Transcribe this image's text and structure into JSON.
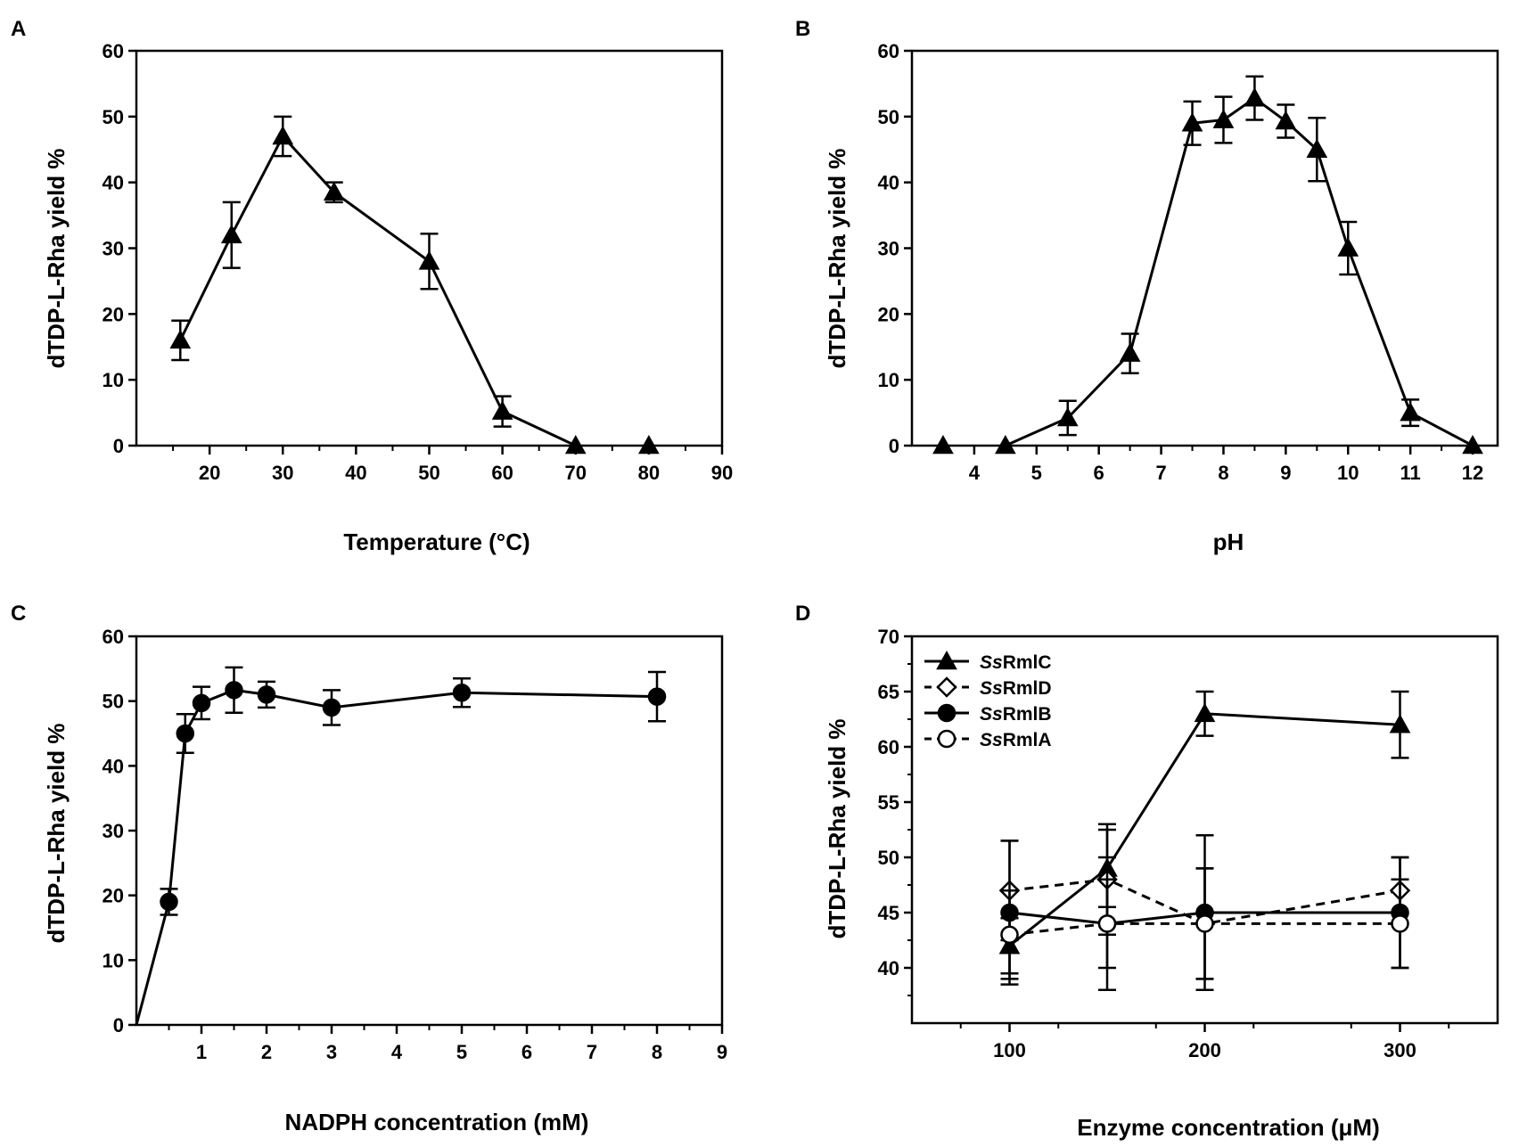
{
  "chart_data": [
    {
      "panel": "A",
      "type": "line",
      "xlabel": "Temperature (°C)",
      "ylabel": "dTDP-L-Rha yield %",
      "xlim": [
        10,
        90
      ],
      "ylim": [
        0,
        60
      ],
      "xticks": [
        20,
        30,
        40,
        50,
        60,
        70,
        80,
        90
      ],
      "yticks": [
        0,
        10,
        20,
        30,
        40,
        50,
        60
      ],
      "series": [
        {
          "name": "yield",
          "marker": "triangle",
          "filled": true,
          "dash": false,
          "x": [
            16,
            23,
            30,
            37,
            50,
            60,
            70,
            80
          ],
          "y": [
            16,
            32,
            47,
            38.5,
            28,
            5.2,
            0,
            0
          ],
          "err": [
            3,
            5,
            3,
            1.5,
            4.2,
            2.3,
            0,
            0
          ],
          "connect_until": 7
        }
      ]
    },
    {
      "panel": "B",
      "type": "line",
      "xlabel": "pH",
      "ylabel": "dTDP-L-Rha yield %",
      "xlim": [
        3,
        12.4
      ],
      "ylim": [
        0,
        60
      ],
      "xticks": [
        4,
        5,
        6,
        7,
        8,
        9,
        10,
        11,
        12
      ],
      "yticks": [
        0,
        10,
        20,
        30,
        40,
        50,
        60
      ],
      "series": [
        {
          "name": "yield",
          "marker": "triangle",
          "filled": true,
          "dash": false,
          "x": [
            3.5,
            4.5,
            5.5,
            6.5,
            7.5,
            8,
            8.5,
            9,
            9.5,
            10,
            11,
            12
          ],
          "y": [
            0,
            0,
            4.2,
            14,
            49,
            49.5,
            52.8,
            49.3,
            45,
            30,
            5,
            0
          ],
          "err": [
            0,
            0,
            2.6,
            3,
            3.3,
            3.5,
            3.3,
            2.5,
            4.8,
            4,
            2,
            0
          ],
          "connect_from": 1
        }
      ]
    },
    {
      "panel": "C",
      "type": "line",
      "xlabel": "NADPH concentration (mM)",
      "ylabel": "dTDP-L-Rha yield %",
      "xlim": [
        0,
        9
      ],
      "ylim": [
        0,
        60
      ],
      "xticks": [
        1,
        2,
        3,
        4,
        5,
        6,
        7,
        8,
        9
      ],
      "yticks": [
        0,
        10,
        20,
        30,
        40,
        50,
        60
      ],
      "series": [
        {
          "name": "yield",
          "marker": "circle",
          "filled": true,
          "dash": false,
          "x": [
            0.5,
            0.75,
            1,
            1.5,
            2,
            3,
            5,
            8
          ],
          "y": [
            19,
            45,
            49.7,
            51.7,
            51,
            49,
            51.3,
            50.7
          ],
          "err": [
            2,
            3,
            2.5,
            3.5,
            2,
            2.7,
            2.2,
            3.8
          ],
          "line_origin": [
            0,
            0
          ]
        }
      ]
    },
    {
      "panel": "D",
      "type": "line",
      "xlabel": "Enzyme concentration (μM)",
      "ylabel": "dTDP-L-Rha yield %",
      "xlim": [
        50,
        350
      ],
      "ylim": [
        35,
        70
      ],
      "xticks": [
        100,
        200,
        300
      ],
      "yticks": [
        40,
        45,
        50,
        55,
        60,
        65,
        70
      ],
      "legend_position": "top-left",
      "series": [
        {
          "name": "SsRmlC",
          "legend_italic": "Ss",
          "legend_rest": "RmlC",
          "marker": "triangle",
          "filled": true,
          "dash": false,
          "x": [
            100,
            150,
            200,
            300
          ],
          "y": [
            42,
            49,
            63,
            62
          ],
          "err": [
            2.5,
            3.5,
            2,
            3
          ]
        },
        {
          "name": "SsRmlD",
          "legend_italic": "Ss",
          "legend_rest": "RmlD",
          "marker": "diamond",
          "filled": false,
          "dash": true,
          "x": [
            100,
            150,
            200,
            300
          ],
          "y": [
            47,
            48,
            44,
            47
          ],
          "err": [
            4.5,
            5,
            5,
            3
          ]
        },
        {
          "name": "SsRmlB",
          "legend_italic": "Ss",
          "legend_rest": "RmlB",
          "marker": "circle",
          "filled": true,
          "dash": false,
          "x": [
            100,
            150,
            200,
            300
          ],
          "y": [
            45,
            44,
            45,
            45
          ],
          "err": [
            6.5,
            6,
            7,
            5
          ]
        },
        {
          "name": "SsRmlA",
          "legend_italic": "Ss",
          "legend_rest": "RmlA",
          "marker": "circle",
          "filled": false,
          "dash": true,
          "x": [
            100,
            150,
            200,
            300
          ],
          "y": [
            43,
            44,
            44,
            44
          ],
          "err": [
            4,
            4,
            5,
            4
          ]
        }
      ]
    }
  ]
}
